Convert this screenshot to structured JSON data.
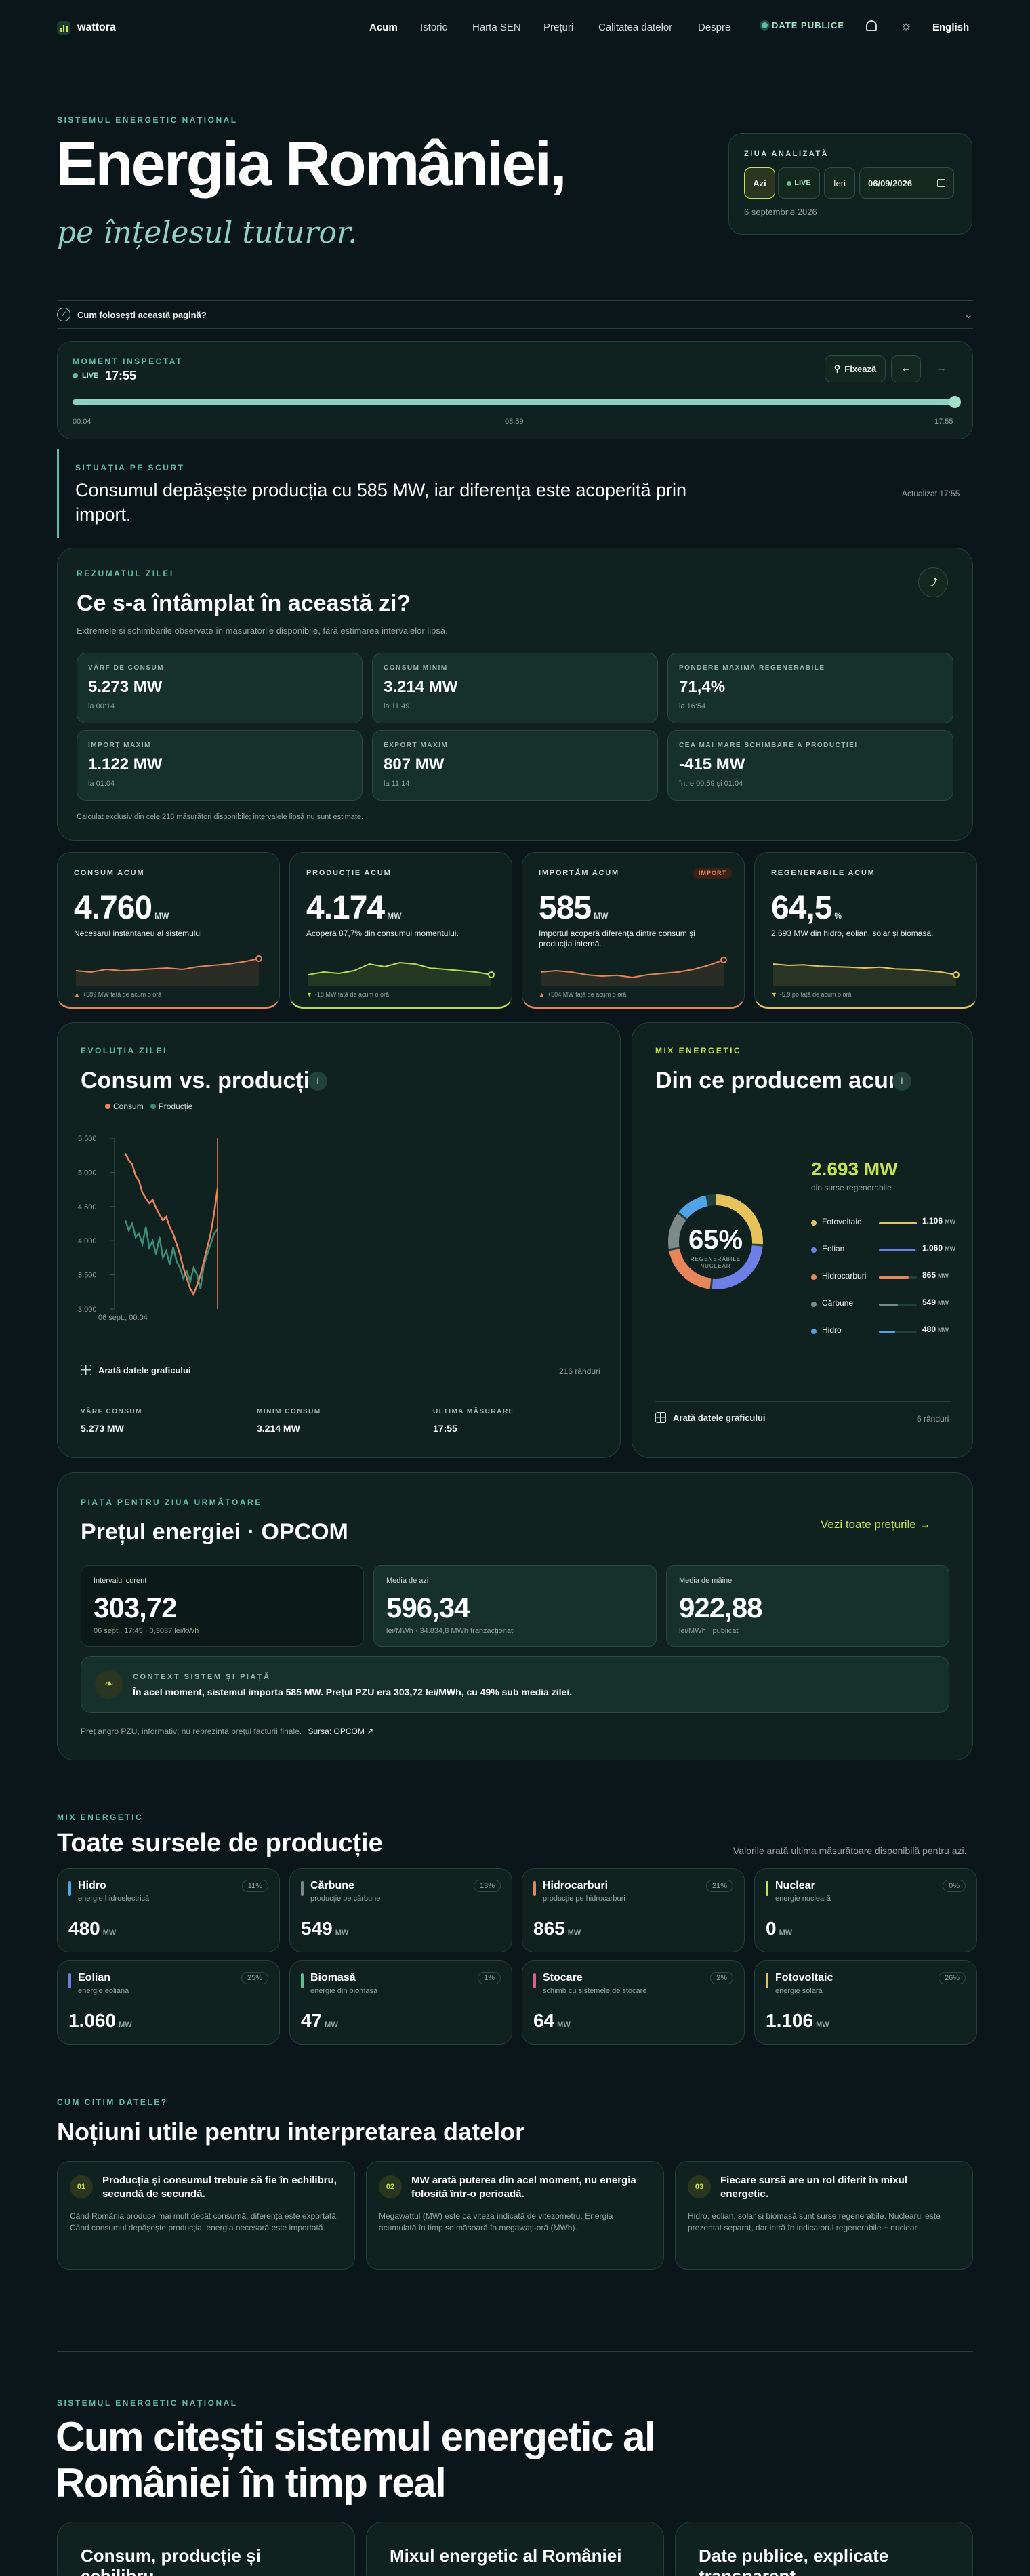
{
  "nav": {
    "brand": "wattora",
    "links": [
      "Acum",
      "Istoric",
      "Harta SEN",
      "Prețuri",
      "Calitatea datelor",
      "Despre"
    ],
    "public_data": "DATE PUBLICE",
    "lang": "English"
  },
  "hero": {
    "kicker": "SISTEMUL ENERGETIC NAȚIONAL",
    "title": "Energia României,",
    "subtitle": "pe înțelesul tuturor."
  },
  "day_panel": {
    "label": "ZIUA ANALIZATĂ",
    "today": "Azi",
    "live": "LIVE",
    "yesterday": "Ieri",
    "date_value": "06/09/2026",
    "date_text": "6 septembrie 2026"
  },
  "help": {
    "label": "Cum folosești această pagină?"
  },
  "moment": {
    "kicker": "MOMENT INSPECTAT",
    "live": "LIVE",
    "time": "17:55",
    "pin": "Fixează",
    "progress": 1.0,
    "tick_start": "00:04",
    "tick_mid": "08:59",
    "tick_end": "17:55"
  },
  "situation": {
    "kicker": "SITUAȚIA PE SCURT",
    "text": "Consumul depășește producția cu 585 MW, iar diferența este acoperită prin import.",
    "updated": "Actualizat 17:55"
  },
  "summary": {
    "kicker": "REZUMATUL ZILEI",
    "title": "Ce s-a întâmplat în această zi?",
    "desc": "Extremele și schimbările observate în măsurătorile disponibile, fără estimarea intervalelor lipsă.",
    "items": [
      {
        "label": "VÂRF DE CONSUM",
        "value": "5.273 MW",
        "sub": "la 00:14"
      },
      {
        "label": "CONSUM MINIM",
        "value": "3.214 MW",
        "sub": "la 11:49"
      },
      {
        "label": "PONDERE MAXIMĂ REGENERABILE",
        "value": "71,4%",
        "sub": "la 16:54"
      },
      {
        "label": "IMPORT MAXIM",
        "value": "1.122 MW",
        "sub": "la 01:04"
      },
      {
        "label": "EXPORT MAXIM",
        "value": "807 MW",
        "sub": "la 11:14"
      },
      {
        "label": "CEA MAI MARE SCHIMBARE A PRODUCȚIEI",
        "value": "-415 MW",
        "sub": "între 00:59 și 01:04"
      }
    ],
    "footnote": "Calculat exclusiv din cele 216 măsurători disponibile; intervalele lipsă nu sunt estimate."
  },
  "kpis": [
    {
      "label": "CONSUM ACUM",
      "value": "4.760",
      "unit": "MW",
      "desc": "Necesarul instantaneu al sistemului",
      "delta": "+589 MW față de acum o oră",
      "dir": "up",
      "color": "#e8845a"
    },
    {
      "label": "PRODUCȚIE ACUM",
      "value": "4.174",
      "unit": "MW",
      "desc": "Acoperă 87,7% din consumul momentului.",
      "delta": "-18 MW față de acum o oră",
      "dir": "down",
      "color": "#b7dd4a"
    },
    {
      "label": "IMPORTĂM ACUM",
      "value": "585",
      "unit": "MW",
      "desc": "Importul acoperă diferența dintre consum și producția internă.",
      "delta": "+504 MW față de acum o oră",
      "dir": "up",
      "color": "#e8845a",
      "badge": "IMPORT"
    },
    {
      "label": "REGENERABILE ACUM",
      "value": "64,5",
      "unit": "%",
      "desc": "2.693 MW din hidro, eolian, solar și biomasă.",
      "delta": "-5,9 pp față de acum o oră",
      "dir": "down",
      "color": "#e7c25a"
    }
  ],
  "evolution": {
    "kicker": "EVOLUȚIA ZILEI",
    "title": "Consum vs. producție",
    "legend_consum": "Consum",
    "legend_productie": "Producție",
    "y_ticks": [
      "5.500",
      "5.000",
      "4.500",
      "4.000",
      "3.500",
      "3.000"
    ],
    "x_tick": "06 sept., 00:04",
    "show_data": "Arată datele graficului",
    "rows": "216 rânduri",
    "stats": [
      {
        "label": "VÂRF CONSUM",
        "value": "5.273 MW"
      },
      {
        "label": "MINIM CONSUM",
        "value": "3.214 MW"
      },
      {
        "label": "ULTIMA MĂSURARE",
        "value": "17:55"
      }
    ]
  },
  "chart_data": {
    "type": "line",
    "ylim": [
      3000,
      5500
    ],
    "y_ticks": [
      5500,
      5000,
      4500,
      4000,
      3500,
      3000
    ],
    "series": [
      {
        "name": "Consum",
        "color": "#e8845a",
        "values": [
          5273,
          5180,
          5120,
          4950,
          4880,
          4700,
          4620,
          4550,
          4600,
          4480,
          4380,
          4300,
          4350,
          4200,
          4100,
          3950,
          3800,
          3600,
          3450,
          3300,
          3214,
          3350,
          3500,
          3700,
          3900,
          4100,
          4400,
          4760
        ]
      },
      {
        "name": "Producție",
        "color": "#3c8c78",
        "values": [
          4300,
          4150,
          4250,
          4050,
          4100,
          3950,
          4200,
          3900,
          4000,
          3800,
          4050,
          3750,
          3850,
          3650,
          3900,
          3700,
          3600,
          3450,
          3550,
          3400,
          3600,
          3500,
          3300,
          3650,
          3800,
          3950,
          4100,
          4174
        ]
      }
    ]
  },
  "mix": {
    "kicker": "MIX ENERGETIC",
    "title": "Din ce producem acum",
    "donut_value": "65%",
    "donut_label": "REGENERABILE\nNUCLEAR",
    "donut_label1": "REGENERABILE",
    "donut_label2": "NUCLEAR",
    "total": "2.693 MW",
    "total_sub": "din surse regenerabile",
    "items": [
      {
        "name": "Fotovoltaic",
        "value": "1.106",
        "num": 1106,
        "color": "#e7c25a"
      },
      {
        "name": "Eolian",
        "value": "1.060",
        "num": 1060,
        "color": "#6f7fe8"
      },
      {
        "name": "Hidrocarburi",
        "value": "865",
        "num": 865,
        "color": "#e8845a"
      },
      {
        "name": "Cărbune",
        "value": "549",
        "num": 549,
        "color": "#7c8a88"
      },
      {
        "name": "Hidro",
        "value": "480",
        "num": 480,
        "color": "#4fa3e8"
      }
    ],
    "unit": "MW",
    "show_data": "Arată datele graficului",
    "rows": "6 rânduri"
  },
  "market": {
    "kicker": "PIAȚA PENTRU ZIUA URMĂTOARE",
    "title": "Prețul energiei · OPCOM",
    "link": "Vezi toate prețurile →",
    "boxes": [
      {
        "label": "Intervalul curent",
        "value": "303,72",
        "sub": "06 sept., 17:45 · 0,3037 lei/kWh"
      },
      {
        "label": "Media de azi",
        "value": "596,34",
        "sub": "lei/MWh · 34.834,8 MWh tranzacționați"
      },
      {
        "label": "Media de mâine",
        "value": "922,88",
        "sub": "lei/MWh · publicat"
      }
    ],
    "context_kicker": "CONTEXT SISTEM ȘI PIAȚĂ",
    "context_text": "În acel moment, sistemul importa 585 MW. Prețul PZU era 303,72 lei/MWh, cu 49% sub media zilei.",
    "footnote": "Preț angro PZU, informativ; nu reprezintă prețul facturii finale.",
    "source": "Sursa: OPCOM ↗"
  },
  "sources": {
    "kicker": "MIX ENERGETIC",
    "title": "Toate sursele de producție",
    "note": "Valorile arată ultima măsurătoare disponibilă pentru azi.",
    "unit": "MW",
    "items": [
      {
        "name": "Hidro",
        "sub": "energie hidroelectrică",
        "value": "480",
        "pct": "11%",
        "color": "#4fa3e8"
      },
      {
        "name": "Cărbune",
        "sub": "producție pe cărbune",
        "value": "549",
        "pct": "13%",
        "color": "#7c8a88"
      },
      {
        "name": "Hidrocarburi",
        "sub": "producție pe hidrocarburi",
        "value": "865",
        "pct": "21%",
        "color": "#e8845a"
      },
      {
        "name": "Nuclear",
        "sub": "energie nucleară",
        "value": "0",
        "pct": "0%",
        "color": "#c6e24c"
      },
      {
        "name": "Eolian",
        "sub": "energie eoliană",
        "value": "1.060",
        "pct": "25%",
        "color": "#6f7fe8"
      },
      {
        "name": "Biomasă",
        "sub": "energie din biomasă",
        "value": "47",
        "pct": "1%",
        "color": "#5fbe8a"
      },
      {
        "name": "Stocare",
        "sub": "schimb cu sistemele de stocare",
        "value": "64",
        "pct": "2%",
        "color": "#e85a8c"
      },
      {
        "name": "Fotovoltaic",
        "sub": "energie solară",
        "value": "1.106",
        "pct": "26%",
        "color": "#e7c25a"
      }
    ]
  },
  "notions": {
    "kicker": "CUM CITIM DATELE?",
    "title": "Noțiuni utile pentru interpretarea datelor",
    "items": [
      {
        "num": "01",
        "title": "Producția și consumul trebuie să fie în echilibru, secundă de secundă.",
        "text": "Când România produce mai mult decât consumă, diferența este exportată. Când consumul depășește producția, energia necesară este importată."
      },
      {
        "num": "02",
        "title": "MW arată puterea din acel moment, nu energia folosită într-o perioadă.",
        "text": "Megawattul (MW) este ca viteza indicată de vitezometru. Energia acumulată în timp se măsoară în megawați-oră (MWh)."
      },
      {
        "num": "03",
        "title": "Fiecare sursă are un rol diferit în mixul energetic.",
        "text": "Hidro, eolian, solar și biomasă sunt surse regenerabile. Nuclearul este prezentat separat, dar intră în indicatorul regenerabile + nuclear."
      }
    ]
  },
  "footer_section": {
    "kicker": "SISTEMUL ENERGETIC NAȚIONAL",
    "title1": "Cum citești sistemul energetic al",
    "title2": "României în timp real",
    "cards": [
      "Consum, producție și echilibru",
      "Mixul energetic al României",
      "Date publice, explicate transparent"
    ]
  }
}
